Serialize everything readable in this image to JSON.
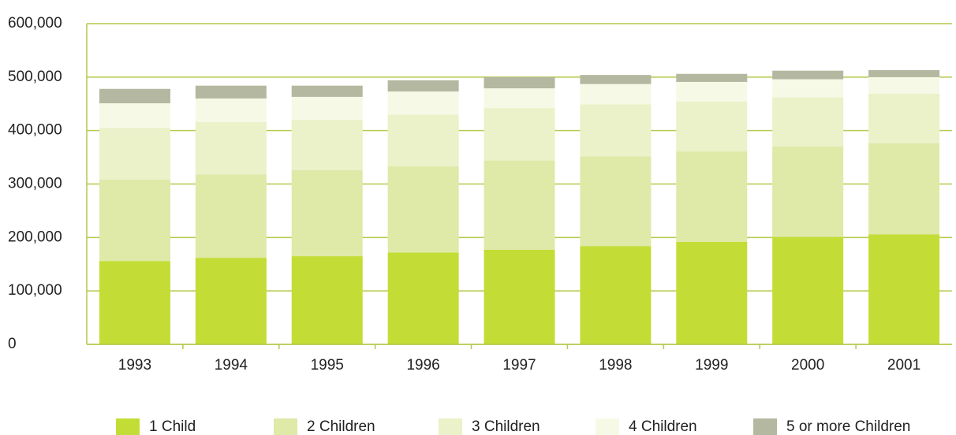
{
  "chart_data": {
    "type": "stacked_bar",
    "categories": [
      "1993",
      "1994",
      "1995",
      "1996",
      "1997",
      "1998",
      "1999",
      "2000",
      "2001"
    ],
    "series": [
      {
        "name": "1 Child",
        "color": "#c3dd36",
        "values": [
          156000,
          162000,
          165000,
          172000,
          177000,
          184000,
          192000,
          201000,
          206000
        ]
      },
      {
        "name": "2 Children",
        "color": "#dfe9a8",
        "values": [
          152000,
          156000,
          161000,
          161000,
          167000,
          168000,
          169000,
          169000,
          170000
        ]
      },
      {
        "name": "3 Children",
        "color": "#ebf1c8",
        "values": [
          97000,
          98000,
          94000,
          97000,
          98000,
          97000,
          93000,
          92000,
          93000
        ]
      },
      {
        "name": "4 Children",
        "color": "#f6f9e6",
        "values": [
          46000,
          44000,
          43000,
          43000,
          37000,
          38000,
          37000,
          34000,
          31000
        ]
      },
      {
        "name": "5 or more Children",
        "color": "#b4b8a0",
        "values": [
          27000,
          24000,
          21000,
          21000,
          21000,
          17000,
          15000,
          16000,
          13000
        ]
      }
    ],
    "ylim": [
      0,
      600000
    ],
    "yticks": [
      0,
      {
        "value": 100000,
        "label": "100,000"
      },
      {
        "value": 200000,
        "label": "200,000"
      },
      {
        "value": 300000,
        "label": "300,000"
      },
      {
        "value": 400000,
        "label": "400,000"
      },
      {
        "value": 500000,
        "label": "500,000"
      },
      {
        "value": 600000,
        "label": "600,000"
      }
    ],
    "grid": true,
    "legend": "bottom"
  }
}
